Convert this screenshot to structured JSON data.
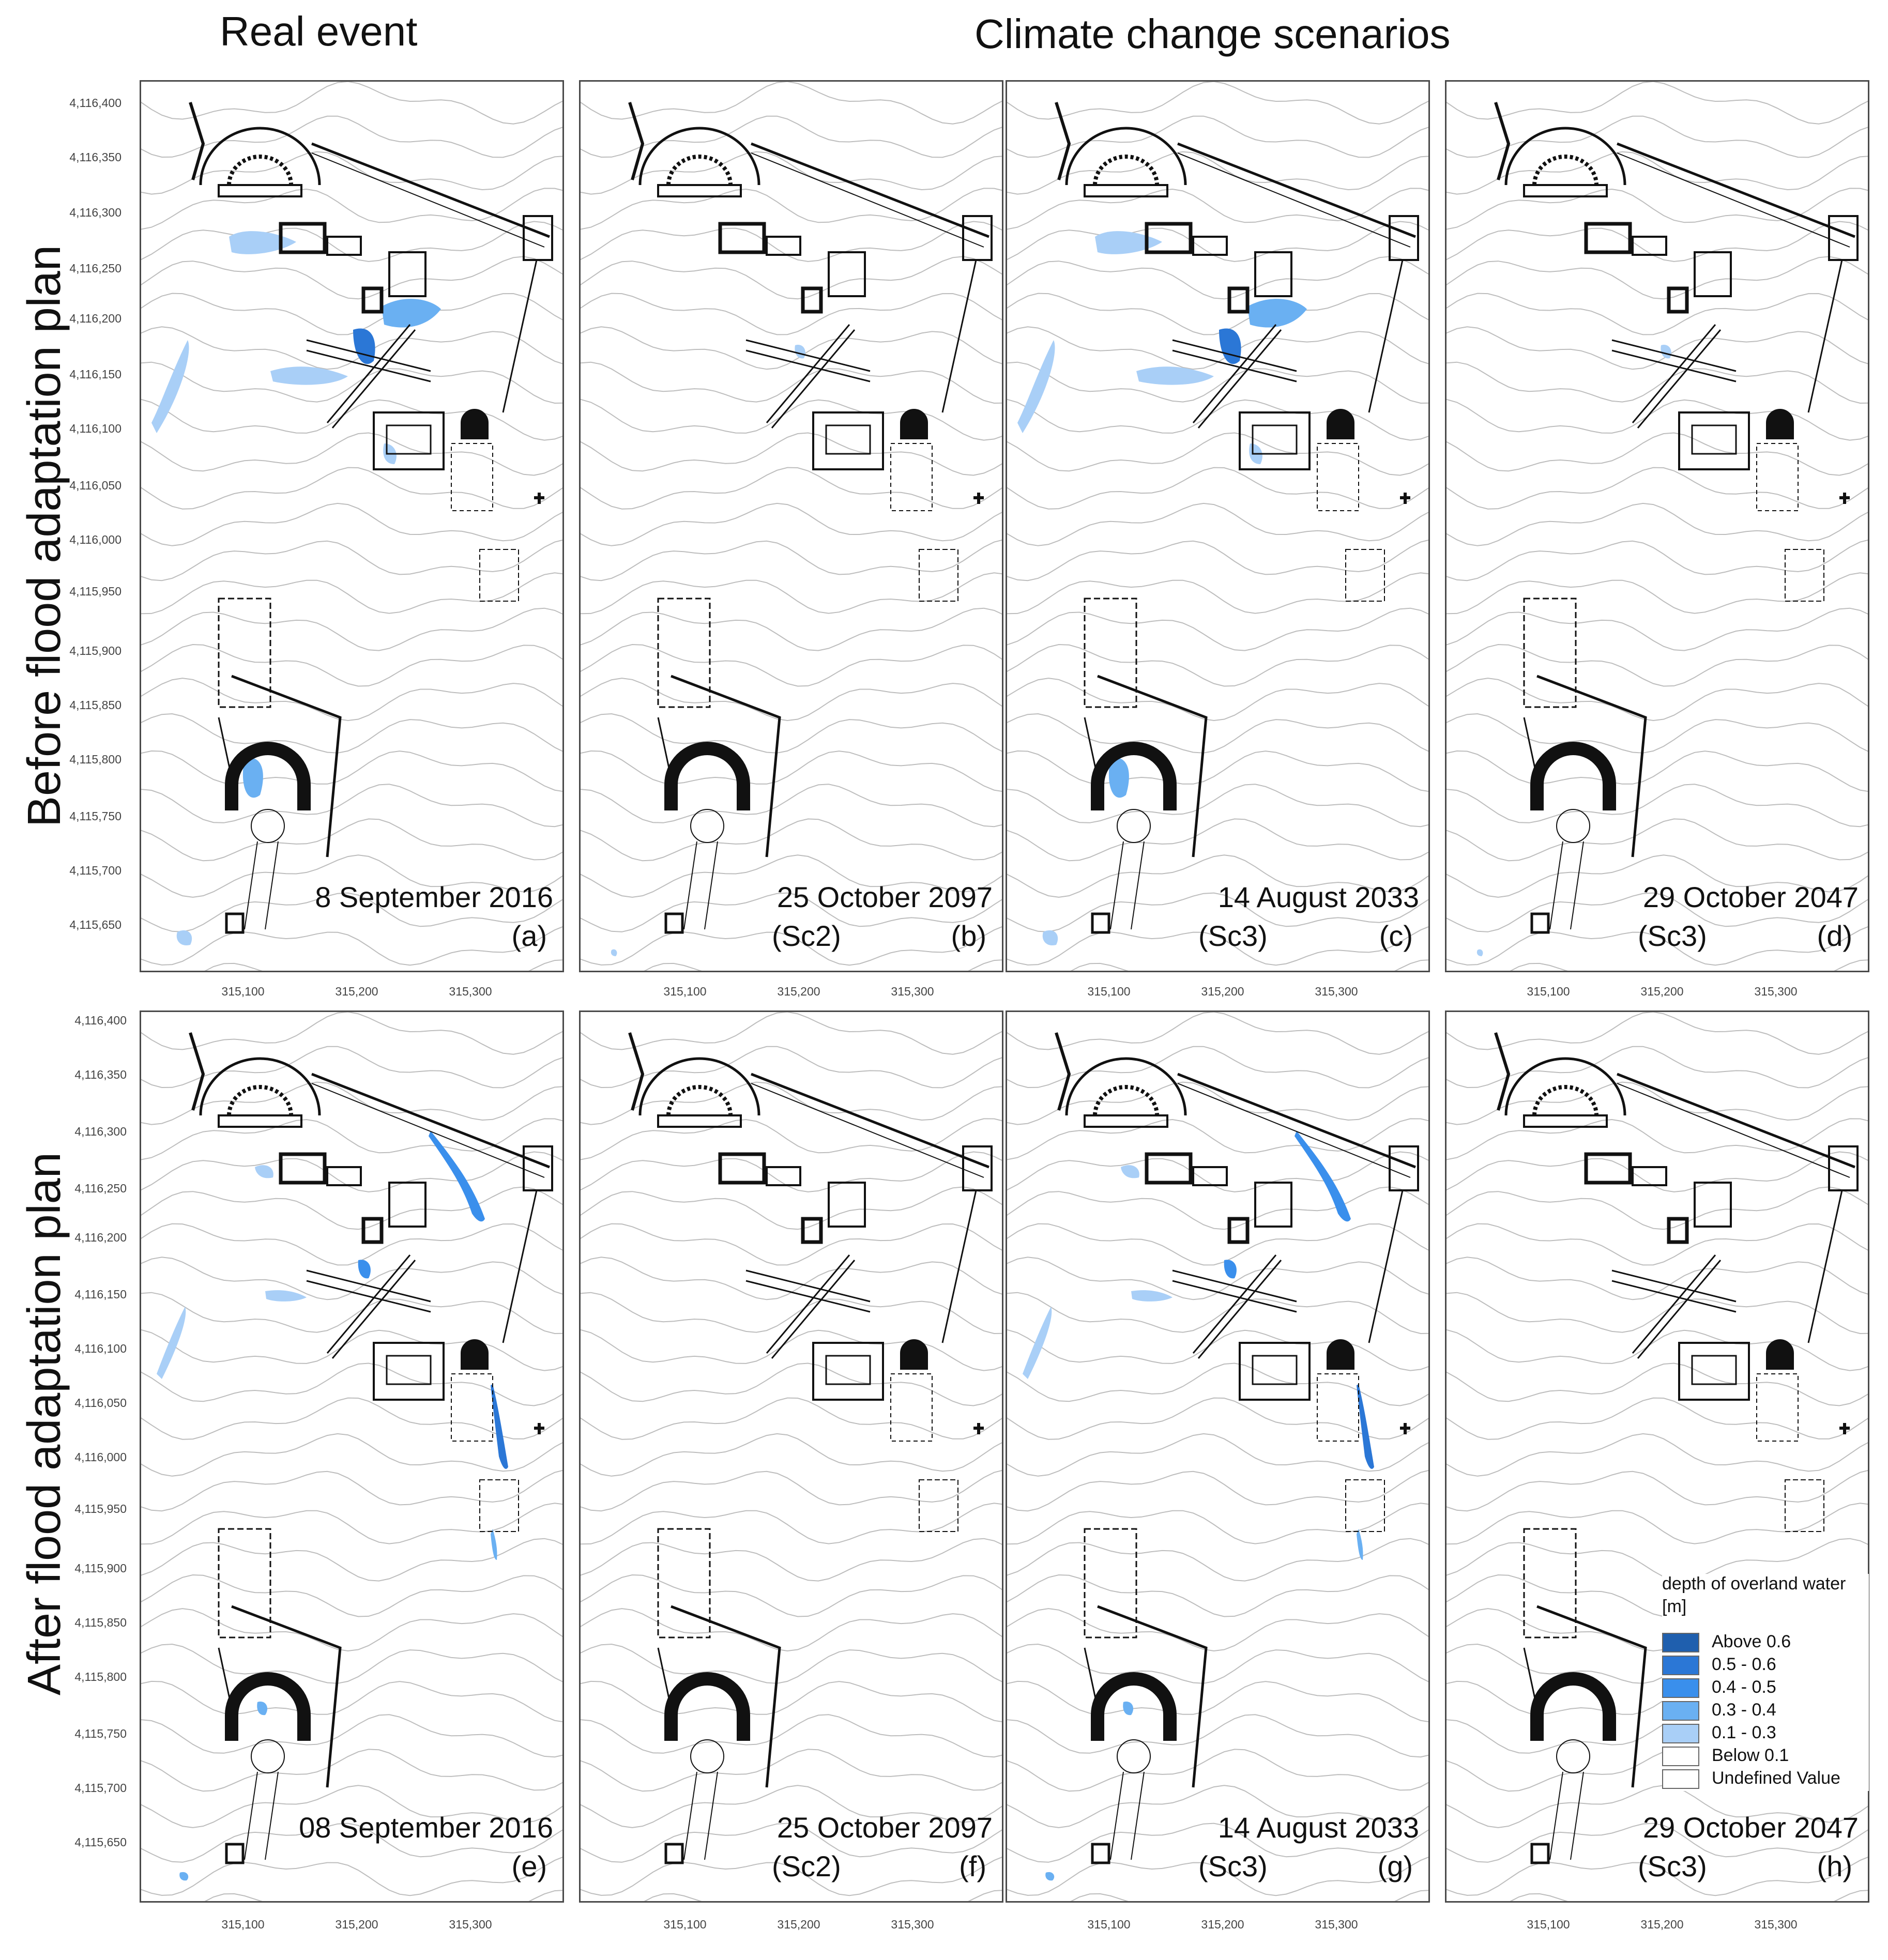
{
  "headers": {
    "real": "Real event",
    "climate": "Climate change scenarios"
  },
  "row_labels": {
    "before": "Before flood adaptation plan",
    "after": "After flood adaptation plan"
  },
  "panels": [
    {
      "id": "a",
      "date": "8 September 2016",
      "scenario": "",
      "letter": "(a)",
      "flood": "heavy"
    },
    {
      "id": "b",
      "date": "25 October 2097",
      "scenario": "(Sc2)",
      "letter": "(b)",
      "flood": "light"
    },
    {
      "id": "c",
      "date": "14 August 2033",
      "scenario": "(Sc3)",
      "letter": "(c)",
      "flood": "heavy"
    },
    {
      "id": "d",
      "date": "29 October 2047",
      "scenario": "(Sc3)",
      "letter": "(d)",
      "flood": "light"
    },
    {
      "id": "e",
      "date": "08 September 2016",
      "scenario": "",
      "letter": "(e)",
      "flood": "adapted"
    },
    {
      "id": "f",
      "date": "25 October 2097",
      "scenario": "(Sc2)",
      "letter": "(f)",
      "flood": "none"
    },
    {
      "id": "g",
      "date": "14 August 2033",
      "scenario": "(Sc3)",
      "letter": "(g)",
      "flood": "adapted"
    },
    {
      "id": "h",
      "date": "29 October 2047",
      "scenario": "(Sc3)",
      "letter": "(h)",
      "flood": "none"
    }
  ],
  "y_ticks": [
    "4,116,400",
    "4,116,350",
    "4,116,300",
    "4,116,250",
    "4,116,200",
    "4,116,150",
    "4,116,100",
    "4,116,050",
    "4,116,000",
    "4,115,950",
    "4,115,900",
    "4,115,850",
    "4,115,800",
    "4,115,750",
    "4,115,700",
    "4,115,650"
  ],
  "x_ticks": [
    "315,100",
    "315,200",
    "315,300"
  ],
  "legend": {
    "title": "depth of overland water",
    "unit": "[m]",
    "items": [
      {
        "label": "Above 0.6",
        "color": "#1f5fae"
      },
      {
        "label": "0.5 - 0.6",
        "color": "#2b77d6"
      },
      {
        "label": "0.4 - 0.5",
        "color": "#3a8fec"
      },
      {
        "label": "0.3 - 0.4",
        "color": "#6ab0f2"
      },
      {
        "label": "0.1 - 0.3",
        "color": "#a9cff7"
      },
      {
        "label": "Below 0.1",
        "color": "#ffffff"
      },
      {
        "label": "Undefined Value",
        "color": "#ffffff"
      }
    ]
  }
}
